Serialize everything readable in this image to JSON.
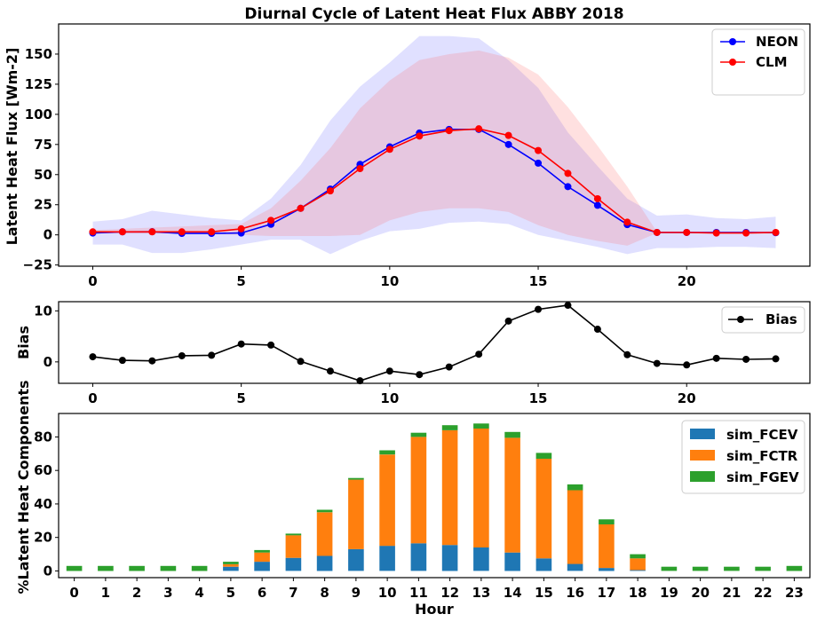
{
  "chart_data": [
    {
      "type": "line",
      "title": "Diurnal Cycle of Latent Heat Flux ABBY 2018",
      "xlabel": "",
      "ylabel": "Latent Heat Flux [Wm-2]",
      "xlim": [
        -1.15,
        24.15
      ],
      "ylim": [
        -26,
        175
      ],
      "xticks": [
        0,
        5,
        10,
        15,
        20
      ],
      "yticks": [
        -25,
        0,
        25,
        50,
        75,
        100,
        125,
        150
      ],
      "legend_position": "top-right",
      "x": [
        0,
        1,
        2,
        3,
        4,
        5,
        6,
        7,
        8,
        9,
        10,
        11,
        12,
        13,
        14,
        15,
        16,
        17,
        18,
        19,
        20,
        21,
        22,
        23
      ],
      "series": [
        {
          "name": "NEON",
          "color": "#0000ff",
          "values": [
            1.5,
            2.5,
            2.6,
            1.2,
            1.2,
            1.5,
            8.8,
            22,
            38,
            58.5,
            73,
            84.5,
            87.5,
            87.5,
            75,
            59.5,
            40,
            24.5,
            8.5,
            2,
            2,
            2,
            2,
            1.8
          ],
          "band_upper": [
            11,
            13,
            20,
            17,
            14,
            12,
            30,
            58,
            95,
            123,
            143,
            165,
            165,
            163,
            145,
            122,
            85,
            57,
            30,
            16,
            17,
            14,
            13,
            15
          ],
          "band_lower": [
            -8,
            -8,
            -15,
            -15,
            -12,
            -8,
            -4,
            -4,
            -16,
            -5,
            3,
            5,
            10,
            11,
            9,
            0,
            -5,
            -10,
            -16,
            -11,
            -11,
            -10,
            -10,
            -11
          ]
        },
        {
          "name": "CLM",
          "color": "#ff0000",
          "values": [
            2.5,
            2.5,
            2.5,
            2.5,
            2.5,
            5,
            12,
            22,
            36.5,
            55,
            71,
            82,
            86.5,
            88,
            82.5,
            70,
            51,
            30,
            10.5,
            2,
            2,
            1.5,
            1.5,
            2
          ],
          "band_upper": [
            4,
            5,
            6,
            7,
            8,
            9,
            22,
            45,
            72,
            105,
            128,
            145,
            150,
            153,
            147,
            133,
            106,
            74,
            40,
            2.5,
            2.5,
            2.5,
            3,
            3
          ],
          "band_lower": [
            1,
            1,
            1,
            1,
            0.5,
            0,
            -1,
            -1,
            -1,
            0,
            12,
            19,
            22,
            22,
            19,
            8,
            0,
            -5,
            -9,
            1.5,
            1.5,
            1,
            1,
            1
          ]
        }
      ]
    },
    {
      "type": "line",
      "title": "",
      "xlabel": "",
      "ylabel": "Bias",
      "xlim": [
        -1.15,
        24.15
      ],
      "ylim": [
        -4.2,
        11.8
      ],
      "xticks": [
        0,
        5,
        10,
        15,
        20
      ],
      "yticks": [
        0,
        10
      ],
      "legend_position": "top-right",
      "x": [
        0,
        1,
        2,
        3,
        4,
        5,
        6,
        7,
        8,
        9,
        10,
        11,
        12,
        13,
        14,
        15,
        16,
        17,
        18,
        19,
        20,
        21,
        22,
        23
      ],
      "series": [
        {
          "name": "Bias",
          "color": "#000000",
          "values": [
            1,
            0.3,
            0.2,
            1.2,
            1.3,
            3.5,
            3.3,
            0.1,
            -1.8,
            -3.7,
            -1.8,
            -2.5,
            -1,
            1.5,
            8,
            10.3,
            11.1,
            6.4,
            1.4,
            -0.3,
            -0.6,
            0.7,
            0.5,
            0.6
          ]
        }
      ]
    },
    {
      "type": "bar",
      "title": "",
      "xlabel": "Hour",
      "ylabel": "%Latent Heat Components",
      "ylim": [
        -4,
        94
      ],
      "yticks": [
        0,
        20,
        40,
        60,
        80
      ],
      "legend_position": "top-right",
      "stacked": true,
      "categories": [
        "0",
        "1",
        "2",
        "3",
        "4",
        "5",
        "6",
        "7",
        "8",
        "9",
        "10",
        "11",
        "12",
        "13",
        "14",
        "15",
        "16",
        "17",
        "18",
        "19",
        "20",
        "21",
        "22",
        "23"
      ],
      "series": [
        {
          "name": "sim_FCEV",
          "color": "#1f77b4",
          "values": [
            0,
            0,
            0,
            0,
            0,
            2.5,
            5.5,
            7.8,
            9,
            13,
            15,
            16.5,
            15.5,
            14,
            11,
            7.5,
            4.2,
            1.8,
            0.5,
            0,
            0,
            0,
            0,
            0
          ]
        },
        {
          "name": "sim_FCTR",
          "color": "#ff7f0e",
          "values": [
            0,
            0,
            0,
            0,
            0,
            1.5,
            5.5,
            13.5,
            26,
            41.5,
            54.5,
            63.5,
            68.5,
            71,
            68.5,
            59.5,
            44,
            26,
            7,
            0,
            0,
            0,
            0,
            0
          ]
        },
        {
          "name": "sim_FGEV",
          "color": "#2ca02c",
          "values": [
            3,
            3,
            3,
            3,
            3,
            1.5,
            1.5,
            1,
            1.5,
            1,
            2.5,
            2.5,
            3,
            3,
            3.5,
            3.5,
            3.5,
            3,
            2.5,
            2.5,
            2.5,
            2.5,
            2.5,
            3
          ]
        }
      ]
    }
  ]
}
